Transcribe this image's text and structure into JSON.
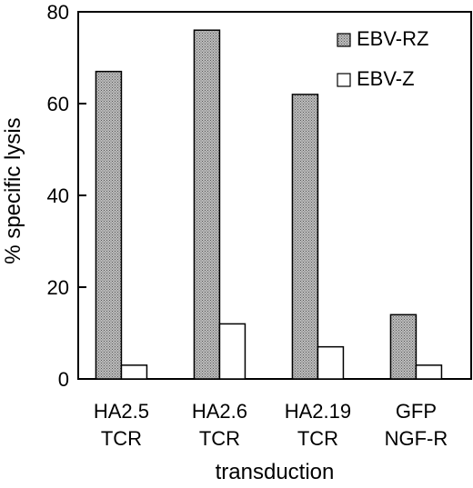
{
  "chart_data": {
    "type": "bar",
    "categories": [
      [
        "HA2.5",
        "TCR"
      ],
      [
        "HA2.6",
        "TCR"
      ],
      [
        "HA2.19",
        "TCR"
      ],
      [
        "GFP",
        "NGF-R"
      ]
    ],
    "series": [
      {
        "name": "EBV-RZ",
        "values": [
          67,
          76,
          62,
          14
        ],
        "fill": "#b4b4b4",
        "pattern": "stipple"
      },
      {
        "name": "EBV-Z",
        "values": [
          3,
          12,
          7,
          3
        ],
        "fill": "#ffffff",
        "pattern": "none"
      }
    ],
    "xlabel": "transduction",
    "ylabel": "% specific lysis",
    "ylim": [
      0,
      80
    ],
    "yticks": [
      "0",
      "20",
      "40",
      "60",
      "80"
    ],
    "grid": false,
    "legend": "top-right"
  }
}
